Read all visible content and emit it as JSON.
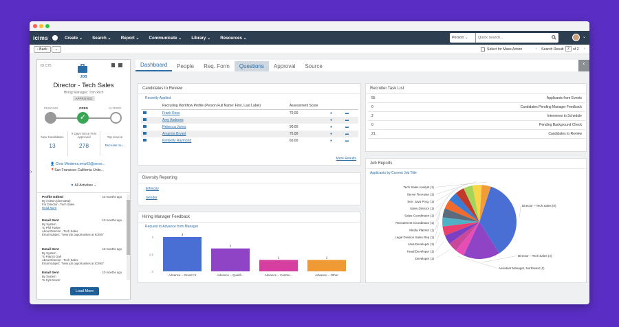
{
  "nav": {
    "logo": "icims",
    "items": [
      "Create",
      "Search",
      "Report",
      "Communicate",
      "Library",
      "Resources"
    ],
    "search_type": "Person",
    "search_placeholder": "Quick search..."
  },
  "toolbar": {
    "back": "Back",
    "mass_action": "Select for Mass Action",
    "search_result_prefix": "Search Result",
    "search_result_current": "2",
    "search_result_suffix": "of 2"
  },
  "job": {
    "id": "ID C75",
    "type_label": "JOB",
    "title": "Director - Tech Sales",
    "manager": "Hiring Manager: Tom Rich",
    "status": "APPROVED",
    "workflow": [
      "PENDING",
      "OPEN",
      "CLOSED"
    ],
    "stats": [
      {
        "label": "New Candidates",
        "value": "13"
      },
      {
        "label": "# Days Since First Approved",
        "value": "278"
      },
      {
        "label": "Top Source",
        "value": "Recruiter Su..."
      }
    ],
    "contact": "Chris Miedema,emp63@perso...",
    "location": "San Francisco California Unite...",
    "activities_label": "All Activities",
    "activities": [
      {
        "title": "Profile Edited",
        "time": "10 months ago",
        "lines": [
          "By /Admin (demo252)",
          "For Director - Tech Sales"
        ],
        "link": "Read More"
      },
      {
        "title": "Email Sent",
        "time": "10 months ago",
        "lines": [
          "By System",
          "To Phil Tucker",
          "About Director - Tech Sales",
          "Email subject: \"New job opportunities at ICIMS\""
        ]
      },
      {
        "title": "Email Sent",
        "time": "10 months ago",
        "lines": [
          "By System",
          "To Patrick Gall",
          "About Director - Tech Sales",
          "Email subject: \"New job opportunities at ICIMS\""
        ]
      },
      {
        "title": "Email Sent",
        "time": "10 months ago",
        "lines": [
          "By System",
          "To Kyle Dover"
        ]
      }
    ],
    "load_more": "Load More"
  },
  "tabs": [
    "Dashboard",
    "People",
    "Req. Form",
    "Questions",
    "Approval",
    "Source"
  ],
  "candidates": {
    "title": "Candidates to Review",
    "sub": "Recently Applied",
    "col1": "Recruiting Workflow Profile (Person Full Name: First, Last Label)",
    "col2": "Assessment Score",
    "rows": [
      {
        "name": "Frank Ross",
        "score": "70.00"
      },
      {
        "name": "Amy Andrews",
        "score": ""
      },
      {
        "name": "Rebecca Jones",
        "score": "90.00"
      },
      {
        "name": "Amanda Bryant",
        "score": "75.00"
      },
      {
        "name": "Kimberly Raymond",
        "score": "60.00"
      }
    ],
    "more": "More Results"
  },
  "diversity": {
    "title": "Diversity Reporting",
    "links": [
      "Ethnicity",
      "Gender"
    ]
  },
  "hm": {
    "title": "Hiring Manager Feedback",
    "sub": "Request to Advance from Manager"
  },
  "tasks": {
    "title": "Recruiter Task List",
    "items": [
      {
        "count": "55",
        "label": "Applicants from Events"
      },
      {
        "count": "0",
        "label": "Candidates Pending Manager Feedback"
      },
      {
        "count": "2",
        "label": "Interviews to Schedule"
      },
      {
        "count": "0",
        "label": "Pending Background Check"
      },
      {
        "count": "21",
        "label": "Candidates to Review"
      }
    ]
  },
  "jobreports": {
    "title": "Job Reports",
    "sub": "Applicants by Current Job Title"
  },
  "chart_data": [
    {
      "type": "bar",
      "categories": [
        "Advance – Great Fit",
        "Advance – Qualifi...",
        "Advance – Contnu...",
        "Advance – Other"
      ],
      "values": [
        3,
        2,
        1,
        1
      ],
      "ylim": [
        0,
        3
      ],
      "ticks": [
        "0",
        "1.5",
        "3"
      ],
      "colors": [
        "#4a6fd4",
        "#8e44c4",
        "#d63ea0",
        "#f09a35"
      ]
    },
    {
      "type": "pie",
      "labels": [
        "Director – Tech Sales (9)",
        "Director – Tech Sales (4)",
        "Assistant Manager, Northwest (1)",
        "Developer (1)",
        "Head Developer (1)",
        "Java Developer (1)",
        "Legal Division Sales Rep (1)",
        "Media Planner (1)",
        "Recruitment Coordinator (1)",
        "Sales Coordinator (1)",
        "Sales Director (1)",
        "Sen. Java Prog. (1)",
        "Senior Recruiter (1)",
        "Tech Sales Analyst (1)"
      ],
      "values": [
        9,
        4,
        1,
        1,
        1,
        1,
        1,
        1,
        1,
        1,
        1,
        1,
        1,
        1
      ],
      "colors": [
        "#4a6fd4",
        "#8e44c4",
        "#e84db5",
        "#c8489a",
        "#7b3fc4",
        "#e8416e",
        "#4fb0c6",
        "#5b6b7c",
        "#f06a2e",
        "#3a7bd5",
        "#c0392b",
        "#a4d45a",
        "#f7d64a",
        "#f29c38"
      ]
    }
  ]
}
